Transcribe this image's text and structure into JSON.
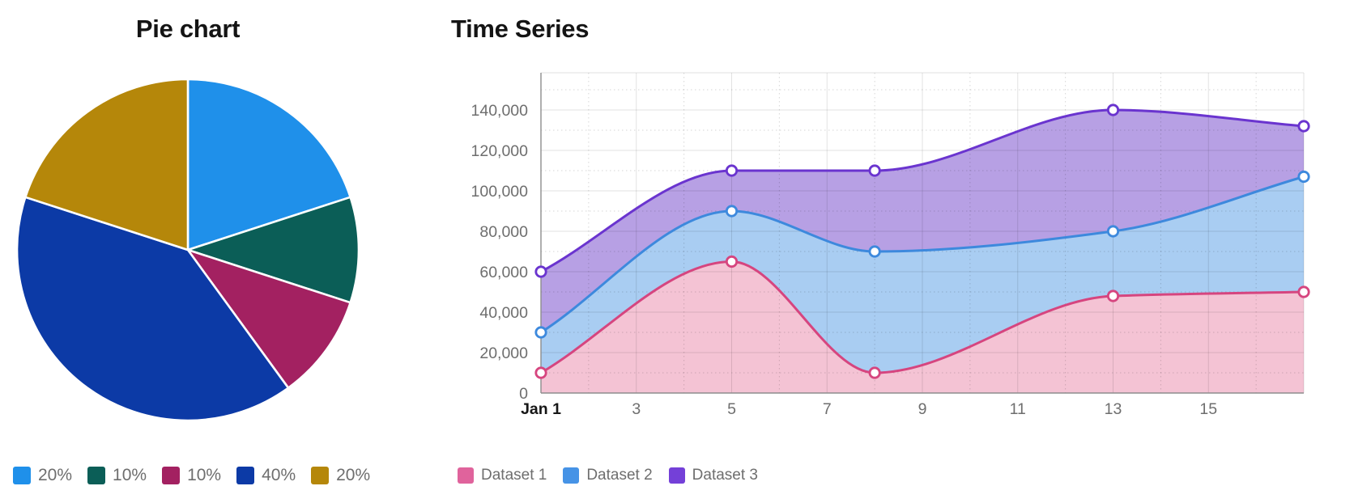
{
  "chart_data": [
    {
      "type": "pie",
      "title": "Pie chart",
      "labels": [
        "20%",
        "10%",
        "10%",
        "40%",
        "20%"
      ],
      "values": [
        20,
        10,
        10,
        40,
        20
      ],
      "colors": [
        "#1f90ea",
        "#0b5e57",
        "#a32161",
        "#0c3aa6",
        "#b5870a"
      ],
      "slice_border_color": "#ffffff",
      "start_angle_deg": -90,
      "direction": "clockwise",
      "legend_position": "bottom"
    },
    {
      "type": "area",
      "title": "Time Series",
      "x_days": [
        1,
        5,
        8,
        13,
        17
      ],
      "series": [
        {
          "name": "Dataset 1",
          "values": [
            10000,
            65000,
            10000,
            48000,
            50000
          ],
          "line_color": "#d6457f",
          "fill_color": "#f4c3d4",
          "legend_color": "#e0639c"
        },
        {
          "name": "Dataset 2",
          "values": [
            30000,
            90000,
            70000,
            80000,
            107000
          ],
          "line_color": "#3d89dd",
          "fill_color": "#a9cdf2",
          "legend_color": "#4693e6"
        },
        {
          "name": "Dataset 3",
          "values": [
            60000,
            110000,
            110000,
            140000,
            132000
          ],
          "line_color": "#6a34cf",
          "fill_color": "#b7a0e4",
          "legend_color": "#7440d8"
        }
      ],
      "x_ticks": [
        {
          "day": 1,
          "label": "Jan 1",
          "bold": true
        },
        {
          "day": 3,
          "label": "3"
        },
        {
          "day": 5,
          "label": "5"
        },
        {
          "day": 7,
          "label": "7"
        },
        {
          "day": 9,
          "label": "9"
        },
        {
          "day": 11,
          "label": "11"
        },
        {
          "day": 13,
          "label": "13"
        },
        {
          "day": 15,
          "label": "15"
        }
      ],
      "y_ticks": [
        {
          "value": 0,
          "label": "0"
        },
        {
          "value": 20000,
          "label": "20,000"
        },
        {
          "value": 40000,
          "label": "40,000"
        },
        {
          "value": 60000,
          "label": "60,000"
        },
        {
          "value": 80000,
          "label": "80,000"
        },
        {
          "value": 100000,
          "label": "100,000"
        },
        {
          "value": 120000,
          "label": "120,000"
        },
        {
          "value": 140000,
          "label": "140,000"
        }
      ],
      "xlim": [
        1,
        17
      ],
      "ylim": [
        0,
        158400
      ],
      "grid": true,
      "curve": "monotone",
      "point_style": "white-filled-circle",
      "legend_position": "bottom",
      "tick_text_color": "#6e6e6e",
      "axis_line_color": "#8d8d8d"
    }
  ]
}
